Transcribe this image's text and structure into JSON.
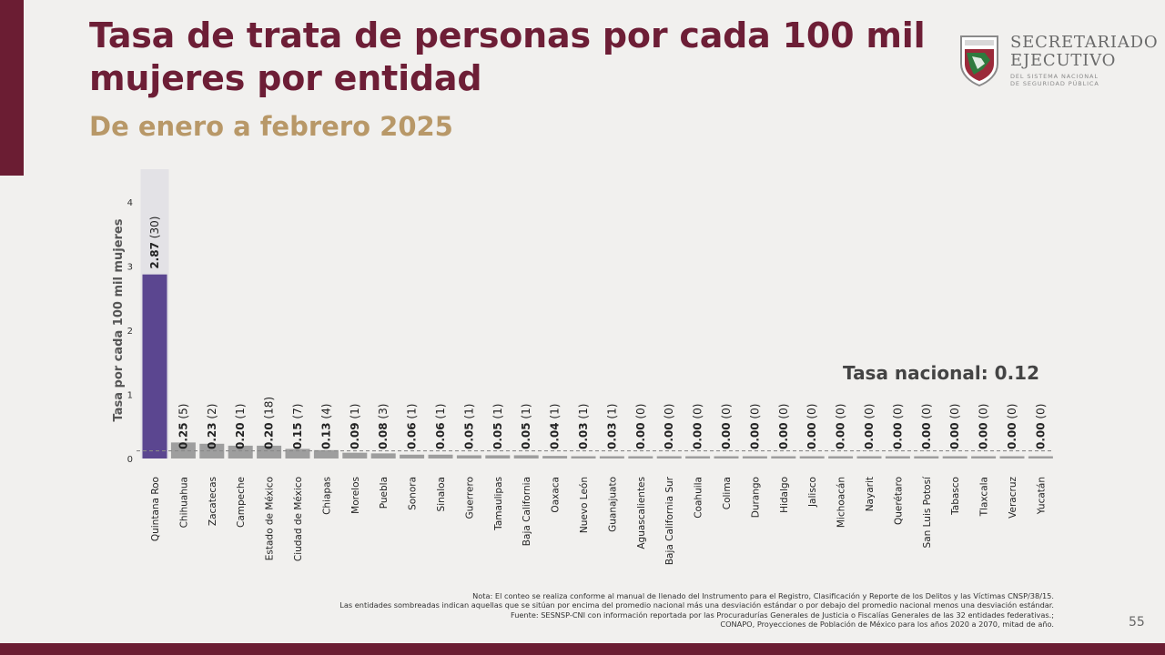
{
  "header": {
    "title": "Tasa de trata de personas por cada 100 mil mujeres por entidad",
    "subtitle": "De enero a febrero 2025"
  },
  "logo": {
    "line1": "SECRETARIADO",
    "line2": "EJECUTIVO",
    "line3": "DEL SISTEMA NACIONAL",
    "line4": "DE SEGURIDAD PÚBLICA"
  },
  "chart_data": {
    "type": "bar",
    "ylabel": "Tasa por cada 100 mil mujeres",
    "ylim": [
      0,
      4.3
    ],
    "yticks": [
      "0",
      "1",
      "2",
      "3",
      "4"
    ],
    "categories": [
      "Quintana Roo",
      "Chihuahua",
      "Zacatecas",
      "Campeche",
      "Estado de México",
      "Ciudad de México",
      "Chiapas",
      "Morelos",
      "Puebla",
      "Sonora",
      "Sinaloa",
      "Guerrero",
      "Tamaulipas",
      "Baja California",
      "Oaxaca",
      "Nuevo León",
      "Guanajuato",
      "Aguascalientes",
      "Baja California Sur",
      "Coahuila",
      "Colima",
      "Durango",
      "Hidalgo",
      "Jalisco",
      "Michoacán",
      "Nayarit",
      "Querétaro",
      "San Luis Potosí",
      "Tabasco",
      "Tlaxcala",
      "Veracruz",
      "Yucatán"
    ],
    "values": [
      2.87,
      0.25,
      0.23,
      0.2,
      0.2,
      0.15,
      0.13,
      0.09,
      0.08,
      0.06,
      0.06,
      0.05,
      0.05,
      0.05,
      0.04,
      0.03,
      0.03,
      0.0,
      0.0,
      0.0,
      0.0,
      0.0,
      0.0,
      0.0,
      0.0,
      0.0,
      0.0,
      0.0,
      0.0,
      0.0,
      0.0,
      0.0
    ],
    "value_labels": [
      "2.87",
      "0.25",
      "0.23",
      "0.20",
      "0.20",
      "0.15",
      "0.13",
      "0.09",
      "0.08",
      "0.06",
      "0.06",
      "0.05",
      "0.05",
      "0.05",
      "0.04",
      "0.03",
      "0.03",
      "0.00",
      "0.00",
      "0.00",
      "0.00",
      "0.00",
      "0.00",
      "0.00",
      "0.00",
      "0.00",
      "0.00",
      "0.00",
      "0.00",
      "0.00",
      "0.00",
      "0.00"
    ],
    "counts": [
      "(30)",
      "(5)",
      "(2)",
      "(1)",
      "(18)",
      "(7)",
      "(4)",
      "(1)",
      "(3)",
      "(1)",
      "(1)",
      "(1)",
      "(1)",
      "(1)",
      "(1)",
      "(1)",
      "(1)",
      "(0)",
      "(0)",
      "(0)",
      "(0)",
      "(0)",
      "(0)",
      "(0)",
      "(0)",
      "(0)",
      "(0)",
      "(0)",
      "(0)",
      "(0)",
      "(0)",
      "(0)"
    ],
    "highlighted": [
      "Quintana Roo"
    ],
    "national_rate": 0.12,
    "national_label": "Tasa nacional: 0.12",
    "colors": {
      "highlight": "#5b4690",
      "bar": "#9e9e9e",
      "highlight_bg": "#e3e2e6",
      "national_line": "#888888"
    },
    "grid": false
  },
  "notes": [
    "Nota: El conteo se realiza conforme al manual de llenado del Instrumento para el Registro, Clasificación y Reporte de los Delitos y las Víctimas CNSP/38/15.",
    "Las entidades sombreadas indican aquellas que se sitúan por encima del promedio nacional más una desviación estándar o por debajo del promedio nacional menos una desviación estándar.",
    "Fuente: SESNSP-CNI con información reportada por las Procuradurías Generales de Justicia o Fiscalías Generales de las 32 entidades federativas.;",
    "CONAPO, Proyecciones de Población de México para los años 2020 a 2070, mitad de año."
  ],
  "page_number": "55"
}
